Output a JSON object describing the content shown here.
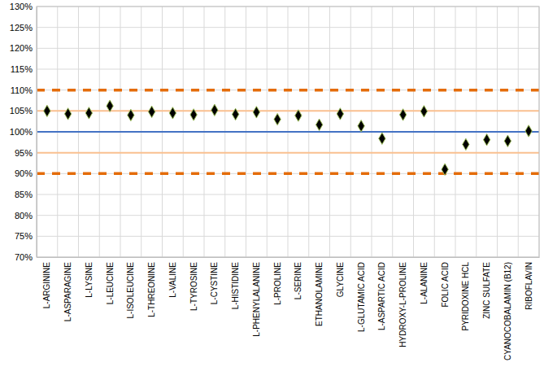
{
  "chart_data": {
    "type": "scatter",
    "categories": [
      "L-ARGININE",
      "L-ASPARAGINE",
      "L-LYSINE",
      "L-LEUCINE",
      "L-ISOLEUCINE",
      "L-THREONINE",
      "L-VALINE",
      "L-TYROSINE",
      "L-CYSTINE",
      "L-HISTIDINE",
      "L-PHENYLALANINE",
      "L-PROLINE",
      "L-SERINE",
      "ETHANOLAMINE",
      "GLYCINE",
      "L-GLUTAMIC ACID",
      "L-ASPARTIC ACID",
      "HYDROXY-L-PROLINE",
      "L-ALANINE",
      "FOLIC ACID",
      "PYRIDOXINE HCL",
      "ZINC SULFATE",
      "CYANOCOBALAMIN (B12)",
      "RIBOFLAVIN"
    ],
    "values": [
      105,
      104.3,
      104.5,
      106.2,
      104,
      104.8,
      104.5,
      104.1,
      105.2,
      104.2,
      104.7,
      103,
      103.9,
      101.7,
      104.3,
      101.4,
      98.4,
      104.1,
      104.9,
      91,
      97,
      98.1,
      97.8,
      100.2
    ],
    "color": "#000000",
    "marker": "diamond",
    "ylim": [
      70,
      130
    ],
    "yticks": [
      {
        "value": 70,
        "label": "70%"
      },
      {
        "value": 75,
        "label": "75%"
      },
      {
        "value": 80,
        "label": "80%"
      },
      {
        "value": 85,
        "label": "85%"
      },
      {
        "value": 90,
        "label": "90%"
      },
      {
        "value": 95,
        "label": "95%"
      },
      {
        "value": 100,
        "label": "100%"
      },
      {
        "value": 105,
        "label": "105%"
      },
      {
        "value": 110,
        "label": "110%"
      },
      {
        "value": 115,
        "label": "115%"
      },
      {
        "value": 120,
        "label": "120%"
      },
      {
        "value": 125,
        "label": "125%"
      },
      {
        "value": 130,
        "label": "130%"
      }
    ],
    "grid": true,
    "reference_lines": [
      {
        "value": 100,
        "color": "#4472c4",
        "line_style": "solid"
      },
      {
        "value": 95,
        "color": "#fac090",
        "line_style": "solid"
      },
      {
        "value": 105,
        "color": "#fac090",
        "line_style": "solid"
      },
      {
        "value": 90,
        "color": "#e46c0a",
        "line_style": "dashed"
      },
      {
        "value": 110,
        "color": "#e46c0a",
        "line_style": "dashed"
      }
    ]
  }
}
